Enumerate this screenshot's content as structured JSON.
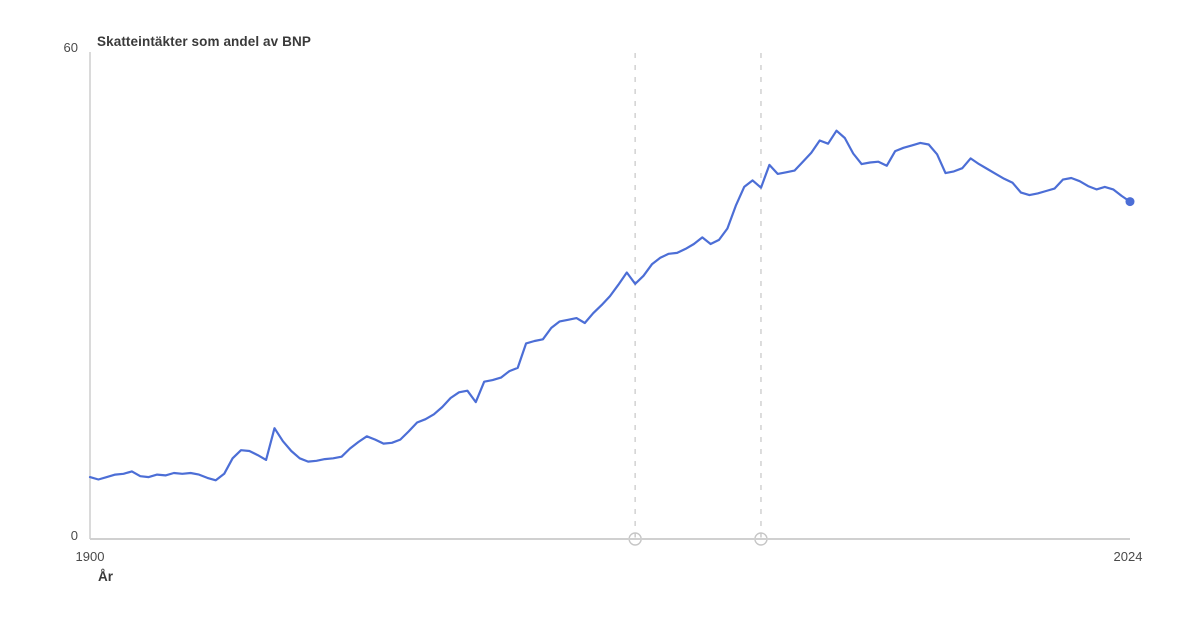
{
  "title": "Skatteintäkter som andel av BNP",
  "y_axis": {
    "max_label": "60",
    "min_label": "0"
  },
  "x_axis": {
    "start_label": "1900",
    "end_label": "2024",
    "title": "År"
  },
  "colors": {
    "line": "#4c6ed6",
    "end_dot": "#4c6ed6",
    "axis": "#d0d0d0",
    "dashed_marker": "#d4d4d4",
    "marker_handle_stroke": "#c6c6c6",
    "marker_handle_fill": "#ffffff",
    "text": "#4a4a4a",
    "title_text": "#3a3a3a",
    "background": "#ffffff"
  },
  "chart_data": {
    "type": "line",
    "title": "Skatteintäkter som andel av BNP",
    "xlabel": "År",
    "ylabel": "",
    "x_range": [
      1900,
      2024
    ],
    "ylim": [
      0,
      60
    ],
    "grid": false,
    "legend_position": "none",
    "x_tick_labels": [
      "1900",
      "2024"
    ],
    "y_tick_labels": [
      "0",
      "60"
    ],
    "reference_lines_years": [
      1965,
      1980
    ],
    "end_point": {
      "year": 2024,
      "value": 41.4
    },
    "x": [
      1900,
      1901,
      1902,
      1903,
      1904,
      1905,
      1906,
      1907,
      1908,
      1909,
      1910,
      1911,
      1912,
      1913,
      1914,
      1915,
      1916,
      1917,
      1918,
      1919,
      1920,
      1921,
      1922,
      1923,
      1924,
      1925,
      1926,
      1927,
      1928,
      1929,
      1930,
      1931,
      1932,
      1933,
      1934,
      1935,
      1936,
      1937,
      1938,
      1939,
      1940,
      1941,
      1942,
      1943,
      1944,
      1945,
      1946,
      1947,
      1948,
      1949,
      1950,
      1951,
      1952,
      1953,
      1954,
      1955,
      1956,
      1957,
      1958,
      1959,
      1960,
      1961,
      1962,
      1963,
      1964,
      1965,
      1966,
      1967,
      1968,
      1969,
      1970,
      1971,
      1972,
      1973,
      1974,
      1975,
      1976,
      1977,
      1978,
      1979,
      1980,
      1981,
      1982,
      1983,
      1984,
      1985,
      1986,
      1987,
      1988,
      1989,
      1990,
      1991,
      1992,
      1993,
      1994,
      1995,
      1996,
      1997,
      1998,
      1999,
      2000,
      2001,
      2002,
      2003,
      2004,
      2005,
      2006,
      2007,
      2008,
      2009,
      2010,
      2011,
      2012,
      2013,
      2014,
      2015,
      2016,
      2017,
      2018,
      2019,
      2020,
      2021,
      2022,
      2023,
      2024
    ],
    "values": [
      7.6,
      7.3,
      7.6,
      7.9,
      8.0,
      8.3,
      7.7,
      7.6,
      7.9,
      7.8,
      8.1,
      8.0,
      8.1,
      7.9,
      7.5,
      7.2,
      8.0,
      9.9,
      10.9,
      10.8,
      10.3,
      9.7,
      13.6,
      12.0,
      10.8,
      9.9,
      9.5,
      9.6,
      9.8,
      9.9,
      10.1,
      11.1,
      11.9,
      12.6,
      12.2,
      11.7,
      11.8,
      12.2,
      13.2,
      14.3,
      14.7,
      15.3,
      16.2,
      17.3,
      18.0,
      18.2,
      16.8,
      19.3,
      19.5,
      19.8,
      20.6,
      21.0,
      24.0,
      24.3,
      24.5,
      25.9,
      26.7,
      26.9,
      27.1,
      26.5,
      27.7,
      28.7,
      29.8,
      31.2,
      32.7,
      31.3,
      32.3,
      33.7,
      34.5,
      35.0,
      35.1,
      35.6,
      36.2,
      37.0,
      36.2,
      36.7,
      38.1,
      40.9,
      43.2,
      44.0,
      43.1,
      45.9,
      44.8,
      45.0,
      45.2,
      46.3,
      47.4,
      48.9,
      48.5,
      50.1,
      49.2,
      47.3,
      46.0,
      46.2,
      46.3,
      45.8,
      47.6,
      48.0,
      48.3,
      48.6,
      48.4,
      47.2,
      44.9,
      45.1,
      45.5,
      46.7,
      46.0,
      45.4,
      44.8,
      44.2,
      43.7,
      42.5,
      42.2,
      42.4,
      42.7,
      43.0,
      44.1,
      44.3,
      43.9,
      43.3,
      42.9,
      43.2,
      42.9,
      42.1,
      41.4
    ]
  }
}
